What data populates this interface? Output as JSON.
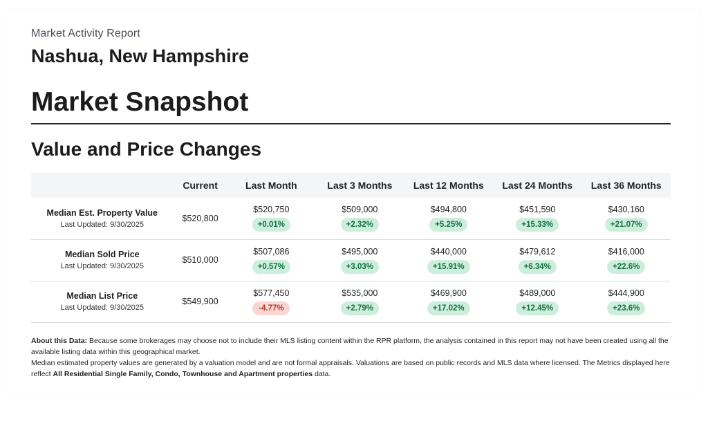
{
  "header": {
    "report_label": "Market Activity Report",
    "location": "Nashua, New Hampshire",
    "page_title": "Market Snapshot",
    "section_title": "Value and Price Changes"
  },
  "table": {
    "columns": [
      "",
      "Current",
      "Last Month",
      "Last 3 Months",
      "Last 12 Months",
      "Last 24 Months",
      "Last 36 Months"
    ],
    "rows": [
      {
        "label": "Median Est. Property Value",
        "updated": "Last Updated: 9/30/2025",
        "current": "$520,800",
        "periods": [
          {
            "value": "$520,750",
            "change": "+0.01%",
            "direction": "up"
          },
          {
            "value": "$509,000",
            "change": "+2.32%",
            "direction": "up"
          },
          {
            "value": "$494,800",
            "change": "+5.25%",
            "direction": "up"
          },
          {
            "value": "$451,590",
            "change": "+15.33%",
            "direction": "up"
          },
          {
            "value": "$430,160",
            "change": "+21.07%",
            "direction": "up"
          }
        ]
      },
      {
        "label": "Median Sold Price",
        "updated": "Last Updated: 9/30/2025",
        "current": "$510,000",
        "periods": [
          {
            "value": "$507,086",
            "change": "+0.57%",
            "direction": "up"
          },
          {
            "value": "$495,000",
            "change": "+3.03%",
            "direction": "up"
          },
          {
            "value": "$440,000",
            "change": "+15.91%",
            "direction": "up"
          },
          {
            "value": "$479,612",
            "change": "+6.34%",
            "direction": "up"
          },
          {
            "value": "$416,000",
            "change": "+22.6%",
            "direction": "up"
          }
        ]
      },
      {
        "label": "Median List Price",
        "updated": "Last Updated: 9/30/2025",
        "current": "$549,900",
        "periods": [
          {
            "value": "$577,450",
            "change": "-4.77%",
            "direction": "down"
          },
          {
            "value": "$535,000",
            "change": "+2.79%",
            "direction": "up"
          },
          {
            "value": "$469,900",
            "change": "+17.02%",
            "direction": "up"
          },
          {
            "value": "$489,000",
            "change": "+12.45%",
            "direction": "up"
          },
          {
            "value": "$444,900",
            "change": "+23.6%",
            "direction": "up"
          }
        ]
      }
    ]
  },
  "about": {
    "heading": "About this Data:",
    "text1": "Because some brokerages may choose not to include their MLS listing content within the RPR platform, the analysis contained in this report may not have been created using all the available listing data within this geographical market.",
    "text2": "Median estimated property values are generated by a valuation model and are not formal appraisals. Valuations are based on public records and MLS data where licensed. The Metrics displayed here reflect",
    "emphasis": "All Residential Single Family, Condo, Townhouse and Apartment properties",
    "text3": "data."
  },
  "colors": {
    "positive_bg": "#cdeedd",
    "positive_text": "#14703f",
    "negative_bg": "#f8d7d4",
    "negative_text": "#b8352a",
    "header_row_bg": "#f3f5f7"
  }
}
